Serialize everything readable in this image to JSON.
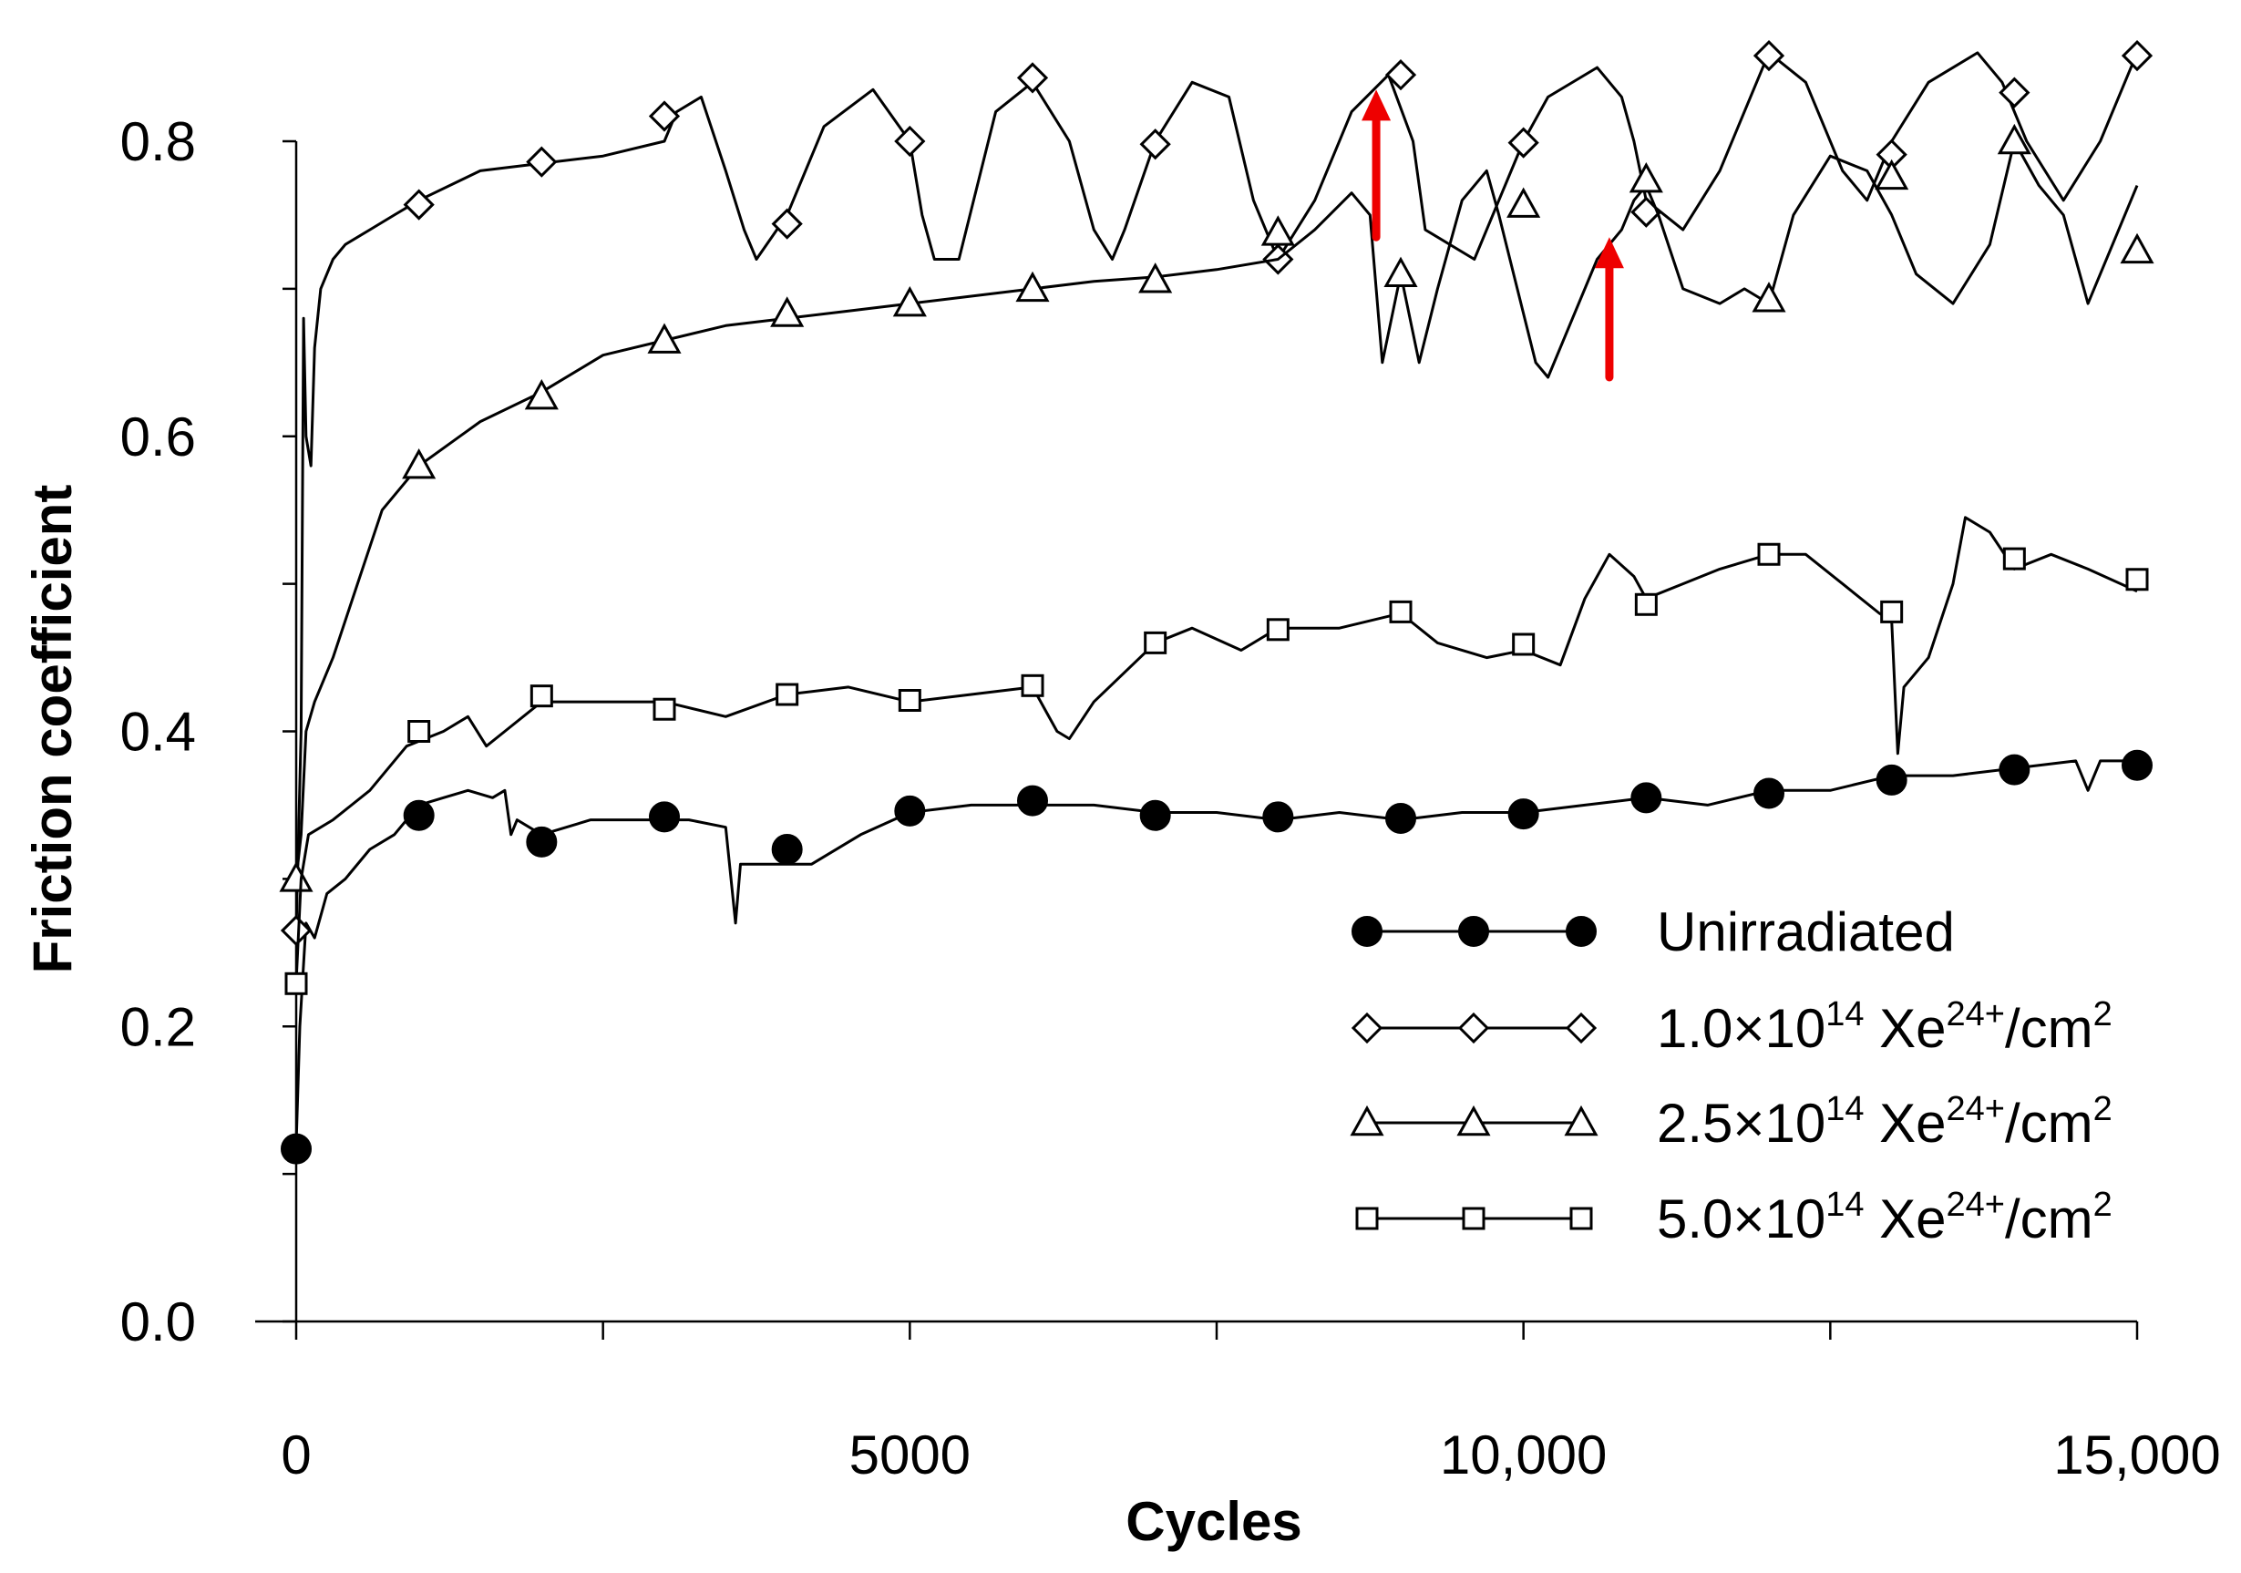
{
  "chart_data": {
    "type": "line",
    "title": "",
    "xlabel": "Cycles",
    "ylabel": "Friction coefficient",
    "xlim": [
      0,
      15000
    ],
    "ylim": [
      0,
      0.8
    ],
    "x_ticks": [
      0,
      5000,
      10000,
      15000
    ],
    "x_tick_labels": [
      "0",
      "5000",
      "10,000",
      "15,000"
    ],
    "y_ticks": [
      0.0,
      0.2,
      0.4,
      0.6,
      0.8
    ],
    "y_tick_labels": [
      "0.0",
      "0.2",
      "0.4",
      "0.6",
      "0.8"
    ],
    "grid": false,
    "legend_position": "bottom-right",
    "series": [
      {
        "name": "Unirradiated",
        "legend_parts": [
          "Unirradiated",
          "",
          "",
          ""
        ],
        "marker": "circle-filled",
        "line_x": [
          0,
          30,
          80,
          150,
          250,
          400,
          600,
          800,
          1000,
          1200,
          1400,
          1600,
          1700,
          1750,
          1800,
          2000,
          2400,
          2800,
          3200,
          3500,
          3580,
          3620,
          3700,
          3900,
          4200,
          4600,
          5000,
          5500,
          6000,
          6500,
          7000,
          7500,
          8000,
          8500,
          9000,
          9500,
          10000,
          10500,
          11000,
          11500,
          12000,
          12500,
          13000,
          13500,
          14000,
          14500,
          14600,
          14700,
          15000
        ],
        "line_y": [
          0.12,
          0.2,
          0.27,
          0.26,
          0.29,
          0.3,
          0.32,
          0.33,
          0.35,
          0.355,
          0.36,
          0.355,
          0.36,
          0.33,
          0.34,
          0.33,
          0.34,
          0.34,
          0.34,
          0.335,
          0.27,
          0.31,
          0.31,
          0.31,
          0.31,
          0.33,
          0.345,
          0.35,
          0.35,
          0.35,
          0.345,
          0.345,
          0.34,
          0.345,
          0.34,
          0.345,
          0.345,
          0.35,
          0.355,
          0.35,
          0.36,
          0.36,
          0.37,
          0.37,
          0.375,
          0.38,
          0.36,
          0.38,
          0.38
        ],
        "marker_x": [
          0,
          1000,
          2000,
          3000,
          4000,
          5000,
          6000,
          7000,
          8000,
          9000,
          10000,
          11000,
          12000,
          13000,
          14000,
          15000
        ],
        "marker_y": [
          0.117,
          0.343,
          0.325,
          0.342,
          0.32,
          0.346,
          0.353,
          0.343,
          0.342,
          0.341,
          0.344,
          0.355,
          0.358,
          0.367,
          0.374,
          0.377
        ]
      },
      {
        "name": "1.0×10¹⁴ Xe²⁴⁺/cm²",
        "legend_parts": [
          "1.0×10",
          "14",
          " Xe",
          "24+",
          "/cm",
          "2"
        ],
        "marker": "diamond-open",
        "line_x": [
          0,
          40,
          60,
          80,
          120,
          150,
          200,
          300,
          400,
          600,
          800,
          1000,
          1500,
          2000,
          2500,
          3000,
          3100,
          3300,
          3500,
          3650,
          3750,
          4000,
          4300,
          4700,
          5000,
          5100,
          5200,
          5400,
          5700,
          6000,
          6300,
          6500,
          6650,
          6750,
          7000,
          7300,
          7600,
          7800,
          8000,
          8300,
          8600,
          8900,
          9100,
          9200,
          9600,
          9800,
          10000,
          10200,
          10600,
          10800,
          10900,
          11000,
          11300,
          11600,
          12000,
          12300,
          12600,
          12800,
          13000,
          13300,
          13700,
          13900,
          14100,
          14400,
          14700,
          15000
        ],
        "line_y": [
          0.265,
          0.4,
          0.68,
          0.6,
          0.58,
          0.66,
          0.7,
          0.72,
          0.73,
          0.74,
          0.75,
          0.76,
          0.78,
          0.785,
          0.79,
          0.8,
          0.82,
          0.83,
          0.78,
          0.74,
          0.72,
          0.75,
          0.81,
          0.835,
          0.8,
          0.75,
          0.72,
          0.72,
          0.82,
          0.84,
          0.8,
          0.74,
          0.72,
          0.74,
          0.8,
          0.84,
          0.83,
          0.76,
          0.72,
          0.76,
          0.82,
          0.845,
          0.8,
          0.74,
          0.72,
          0.76,
          0.8,
          0.83,
          0.85,
          0.83,
          0.8,
          0.76,
          0.74,
          0.78,
          0.86,
          0.84,
          0.78,
          0.76,
          0.8,
          0.84,
          0.86,
          0.84,
          0.8,
          0.76,
          0.8,
          0.86
        ],
        "marker_x": [
          0,
          1000,
          2000,
          3000,
          4000,
          5000,
          6000,
          7000,
          8000,
          9000,
          10000,
          11000,
          12000,
          13000,
          14000,
          15000
        ],
        "marker_y": [
          0.265,
          0.757,
          0.786,
          0.817,
          0.744,
          0.8,
          0.843,
          0.798,
          0.72,
          0.845,
          0.799,
          0.752,
          0.858,
          0.791,
          0.833,
          0.858
        ]
      },
      {
        "name": "2.5×10¹⁴ Xe²⁴⁺/cm²",
        "legend_parts": [
          "2.5×10",
          "14",
          " Xe",
          "24+",
          "/cm",
          "2"
        ],
        "marker": "triangle-open",
        "line_x": [
          0,
          40,
          80,
          150,
          300,
          500,
          700,
          1000,
          1500,
          2000,
          2500,
          3000,
          3500,
          4000,
          4500,
          5000,
          5500,
          6000,
          6500,
          7000,
          7500,
          8000,
          8300,
          8600,
          8750,
          8850,
          9000,
          9150,
          9300,
          9500,
          9700,
          9800,
          9950,
          10100,
          10200,
          10400,
          10600,
          10800,
          10900,
          11000,
          11100,
          11300,
          11600,
          11800,
          12000,
          12200,
          12500,
          12800,
          13000,
          13200,
          13500,
          13800,
          14000,
          14200,
          14400,
          14600,
          15000
        ],
        "line_y": [
          0.3,
          0.33,
          0.4,
          0.42,
          0.45,
          0.5,
          0.55,
          0.58,
          0.61,
          0.63,
          0.655,
          0.665,
          0.675,
          0.68,
          0.685,
          0.69,
          0.695,
          0.7,
          0.705,
          0.708,
          0.713,
          0.72,
          0.74,
          0.765,
          0.75,
          0.65,
          0.71,
          0.65,
          0.7,
          0.76,
          0.78,
          0.75,
          0.7,
          0.65,
          0.64,
          0.68,
          0.72,
          0.74,
          0.76,
          0.77,
          0.75,
          0.7,
          0.69,
          0.7,
          0.69,
          0.75,
          0.79,
          0.78,
          0.75,
          0.71,
          0.69,
          0.73,
          0.8,
          0.77,
          0.75,
          0.69,
          0.77
        ],
        "marker_x": [
          0,
          1000,
          2000,
          3000,
          4000,
          5000,
          6000,
          7000,
          8000,
          9000,
          10000,
          11000,
          12000,
          13000,
          14000,
          15000
        ],
        "marker_y": [
          0.3,
          0.58,
          0.627,
          0.665,
          0.683,
          0.69,
          0.7,
          0.706,
          0.738,
          0.71,
          0.757,
          0.774,
          0.693,
          0.776,
          0.8,
          0.726
        ]
      },
      {
        "name": "5.0×10¹⁴ Xe²⁴⁺/cm²",
        "legend_parts": [
          "5.0×10",
          "14",
          " Xe",
          "24+",
          "/cm",
          "2"
        ],
        "marker": "square-open",
        "line_x": [
          0,
          40,
          100,
          300,
          600,
          900,
          1200,
          1400,
          1550,
          1700,
          2000,
          2500,
          3000,
          3500,
          4000,
          4500,
          5000,
          5500,
          6000,
          6200,
          6300,
          6500,
          7000,
          7300,
          7700,
          8000,
          8500,
          9000,
          9300,
          9700,
          10000,
          10300,
          10500,
          10700,
          10900,
          11000,
          11300,
          11600,
          12000,
          12300,
          12600,
          12900,
          13000,
          13050,
          13100,
          13300,
          13500,
          13600,
          13800,
          14000,
          14300,
          14600,
          15000
        ],
        "line_y": [
          0.23,
          0.3,
          0.33,
          0.34,
          0.36,
          0.39,
          0.4,
          0.41,
          0.39,
          0.4,
          0.42,
          0.42,
          0.42,
          0.41,
          0.425,
          0.43,
          0.42,
          0.425,
          0.43,
          0.4,
          0.395,
          0.42,
          0.46,
          0.47,
          0.455,
          0.47,
          0.47,
          0.48,
          0.46,
          0.45,
          0.455,
          0.445,
          0.49,
          0.52,
          0.505,
          0.49,
          0.5,
          0.51,
          0.52,
          0.52,
          0.5,
          0.48,
          0.475,
          0.385,
          0.43,
          0.45,
          0.5,
          0.545,
          0.535,
          0.51,
          0.52,
          0.51,
          0.495
        ],
        "marker_x": [
          0,
          1000,
          2000,
          3000,
          4000,
          5000,
          6000,
          7000,
          8000,
          9000,
          10000,
          11000,
          12000,
          13000,
          14000,
          15000
        ],
        "marker_y": [
          0.229,
          0.4,
          0.424,
          0.415,
          0.425,
          0.421,
          0.431,
          0.46,
          0.469,
          0.481,
          0.459,
          0.486,
          0.52,
          0.481,
          0.517,
          0.503
        ]
      }
    ],
    "annotations": [
      {
        "type": "arrow",
        "color": "#ee0000",
        "x": 8800,
        "y_from": 0.735,
        "y_to": 0.835
      },
      {
        "type": "arrow",
        "color": "#ee0000",
        "x": 10700,
        "y_from": 0.64,
        "y_to": 0.735
      }
    ]
  }
}
